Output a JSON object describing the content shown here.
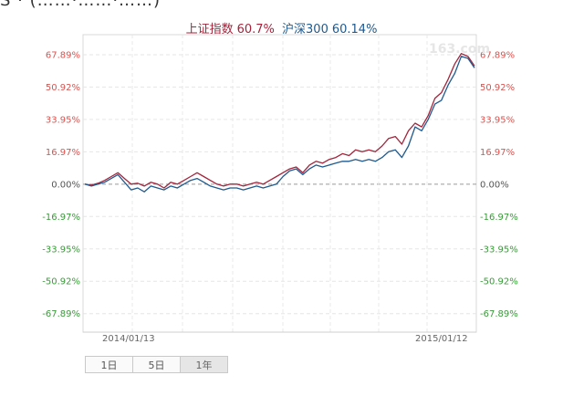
{
  "header_fragment": "S · (……·……·……)",
  "legend": {
    "sh_label": "上证指数",
    "sh_value": "60.7%",
    "hs_label": "沪深300",
    "hs_value": "60.14%"
  },
  "watermark": "163.com",
  "buttons": [
    {
      "label": "1日",
      "active": false
    },
    {
      "label": "5日",
      "active": false
    },
    {
      "label": "1年",
      "active": true
    }
  ],
  "colors": {
    "sh": "#a3243b",
    "hs": "#1f5a8f",
    "positive": "#d9534f",
    "negative": "#3a9a3a",
    "zero": "#555555"
  },
  "chart_data": {
    "type": "line",
    "title": "",
    "xlabel": "",
    "ylabel": "",
    "ylim": [
      -77.6,
      78.4
    ],
    "y_ticks": [
      "67.89%",
      "50.92%",
      "33.95%",
      "16.97%",
      "0.00%",
      "-16.97%",
      "-33.95%",
      "-50.92%",
      "-67.89%"
    ],
    "y_tick_values": [
      67.89,
      50.92,
      33.95,
      16.97,
      0,
      -16.97,
      -33.95,
      -50.92,
      -67.89
    ],
    "x_tick_labels": [
      "2014/01/13",
      "2015/01/12"
    ],
    "series": [
      {
        "name": "上证指数",
        "values": [
          0,
          -0.5,
          0.5,
          2,
          4,
          6,
          3,
          0,
          0.5,
          -1,
          1,
          0,
          -2,
          1,
          0,
          2,
          4,
          6,
          4,
          2,
          0,
          -1,
          0,
          0,
          -1,
          0,
          1,
          0,
          2,
          4,
          6,
          8,
          9,
          6,
          10,
          12,
          11,
          13,
          14,
          16,
          15,
          18,
          17,
          18,
          17,
          20,
          24,
          25,
          21,
          28,
          32,
          30,
          36,
          45,
          48,
          55,
          63,
          68.5,
          67,
          62
        ]
      },
      {
        "name": "沪深300",
        "values": [
          0,
          -1,
          0,
          1,
          3,
          5,
          1,
          -3,
          -2,
          -4,
          -1,
          -2,
          -3,
          -1,
          -2,
          0,
          2,
          3,
          1,
          -1,
          -2,
          -3,
          -2,
          -2,
          -3,
          -2,
          -1,
          -2,
          -1,
          0,
          4,
          7,
          8,
          5,
          8,
          10,
          9,
          10,
          11,
          12,
          12,
          13,
          12,
          13,
          12,
          14,
          17,
          18,
          14,
          20,
          30,
          28,
          34,
          42,
          44,
          52,
          58,
          67,
          66,
          61
        ]
      }
    ],
    "grid": true
  }
}
